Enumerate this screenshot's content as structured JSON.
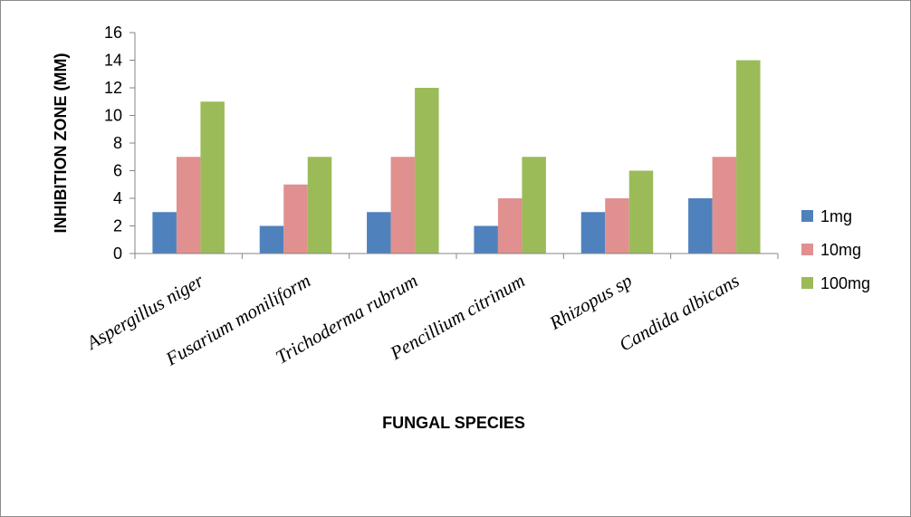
{
  "chart_data": {
    "type": "bar",
    "title": "",
    "xlabel": "FUNGAL SPECIES",
    "ylabel": "INHIBITION ZONE (MM)",
    "ylim": [
      0,
      16
    ],
    "yticks": [
      0,
      2,
      4,
      6,
      8,
      10,
      12,
      14,
      16
    ],
    "grid": false,
    "legend_position": "right",
    "categories": [
      "Aspergillus niger",
      "Fusarium moniliform",
      "Trichoderma rubrum",
      "Pencillium citrinum",
      "Rhizopus sp",
      "Candida albicans"
    ],
    "series": [
      {
        "name": "1mg",
        "color": "#4f81bd",
        "values": [
          3,
          2,
          3,
          2,
          3,
          4
        ]
      },
      {
        "name": "10mg",
        "color": "#e0908f",
        "values": [
          7,
          5,
          7,
          4,
          4,
          7
        ]
      },
      {
        "name": "100mg",
        "color": "#9bbb59",
        "values": [
          11,
          7,
          12,
          7,
          6,
          14
        ]
      }
    ]
  }
}
